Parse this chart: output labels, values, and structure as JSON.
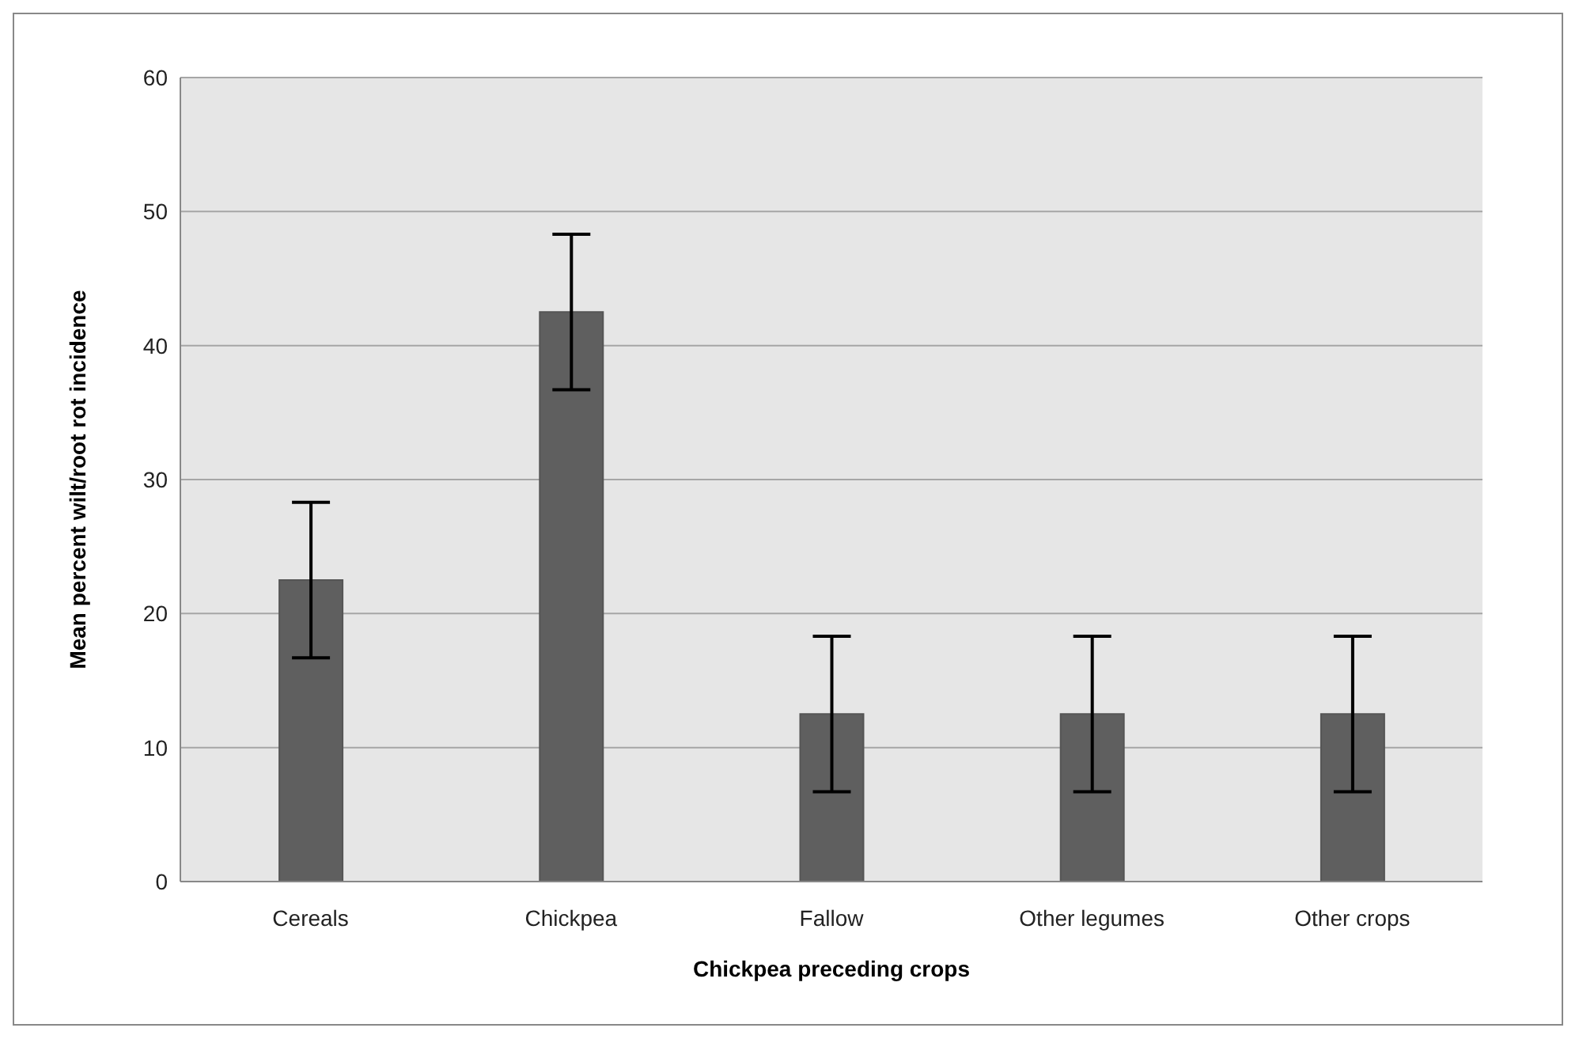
{
  "chart_data": {
    "type": "bar",
    "xlabel": "Chickpea preceding crops",
    "ylabel": "Mean percent wilt/root rot incidence",
    "categories": [
      "Cereals",
      "Chickpea",
      "Fallow",
      "Other legumes",
      "Other  crops"
    ],
    "values": [
      22.5,
      42.5,
      12.5,
      12.5,
      12.5
    ],
    "errors": [
      5.8,
      5.8,
      5.8,
      5.8,
      5.8
    ],
    "color": "#5f5f5f",
    "ylim": [
      0,
      60
    ],
    "yticks": [
      0,
      10,
      20,
      30,
      40,
      50,
      60
    ],
    "grid": "y"
  }
}
